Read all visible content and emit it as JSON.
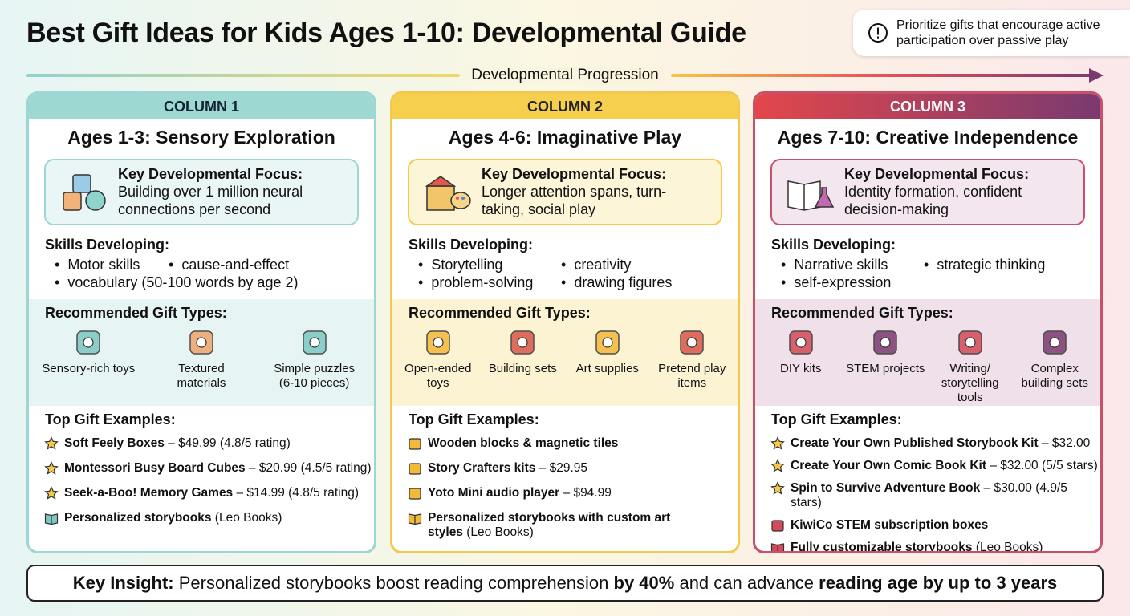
{
  "title": "Best Gift Ideas for Kids Ages 1-10: Developmental Guide",
  "tip": "Prioritize gifts that encourage active participation over passive play",
  "progression": "Developmental Progression",
  "columns": [
    {
      "label": "COLUMN 1",
      "heading": "Ages 1-3: Sensory Exploration",
      "focus_title": "Key Developmental Focus:",
      "focus_text": "Building over 1 million neural connections per second",
      "skills_title": "Skills Developing:",
      "skills": [
        "Motor skills",
        "cause-and-effect",
        "vocabulary (50-100 words by age 2)"
      ],
      "gifts_title": "Recommended Gift Types:",
      "gift_types": [
        "Sensory-rich toys",
        "Textured materials",
        "Simple puzzles (6-10 pieces)"
      ],
      "examples_title": "Top Gift Examples:",
      "examples": [
        {
          "name": "Soft Feely Boxes",
          "detail": "– $49.99 (4.8/5 rating)"
        },
        {
          "name": "Montessori Busy Board Cubes",
          "detail": "– $20.99 (4.5/5 rating)"
        },
        {
          "name": "Seek-a-Boo! Memory Games",
          "detail": "– $14.99 (4.8/5 rating)"
        },
        {
          "name": "Personalized storybooks",
          "detail": "(Leo Books)"
        }
      ]
    },
    {
      "label": "COLUMN 2",
      "heading": "Ages 4-6: Imaginative Play",
      "focus_title": "Key Developmental Focus:",
      "focus_text": "Longer attention spans, turn-taking, social play",
      "skills_title": "Skills Developing:",
      "skills": [
        "Storytelling",
        "creativity",
        "problem-solving",
        "drawing figures"
      ],
      "gifts_title": "Recommended Gift Types:",
      "gift_types": [
        "Open-ended toys",
        "Building sets",
        "Art supplies",
        "Pretend play items"
      ],
      "examples_title": "Top Gift Examples:",
      "examples": [
        {
          "name": "Wooden blocks & magnetic tiles"
        },
        {
          "name": "Story Crafters kits",
          "detail": "– $29.95"
        },
        {
          "name": "Yoto Mini audio player",
          "detail": "– $94.99"
        },
        {
          "name": "Personalized storybooks with custom art styles",
          "detail": "(Leo Books)"
        }
      ]
    },
    {
      "label": "COLUMN 3",
      "heading": "Ages 7-10: Creative Independence",
      "focus_title": "Key Developmental Focus:",
      "focus_text": "Identity formation, confident decision-making",
      "skills_title": "Skills Developing:",
      "skills": [
        "Narrative skills",
        "strategic thinking",
        "self-expression"
      ],
      "gifts_title": "Recommended Gift Types:",
      "gift_types": [
        "DIY kits",
        "STEM projects",
        "Writing/ storytelling tools",
        "Complex building sets"
      ],
      "examples_title": "Top Gift Examples:",
      "examples": [
        {
          "name": "Create Your Own Published Storybook Kit",
          "detail": "– $32.00"
        },
        {
          "name": "Create Your Own Comic Book Kit",
          "detail": "– $32.00 (5/5 stars)"
        },
        {
          "name": "Spin to Survive Adventure Book",
          "detail": "– $30.00 (4.9/5 stars)"
        },
        {
          "name": "KiwiCo STEM subscription boxes"
        },
        {
          "name": "Fully customizable storybooks",
          "detail": "(Leo Books)"
        }
      ]
    }
  ],
  "insight": [
    {
      "text": "Key Insight:",
      "bold": true
    },
    {
      "text": " Personalized storybooks boost reading comprehension ",
      "bold": false
    },
    {
      "text": "by 40%",
      "bold": true
    },
    {
      "text": " and can advance ",
      "bold": false
    },
    {
      "text": "reading age by up to 3 years",
      "bold": true
    }
  ]
}
